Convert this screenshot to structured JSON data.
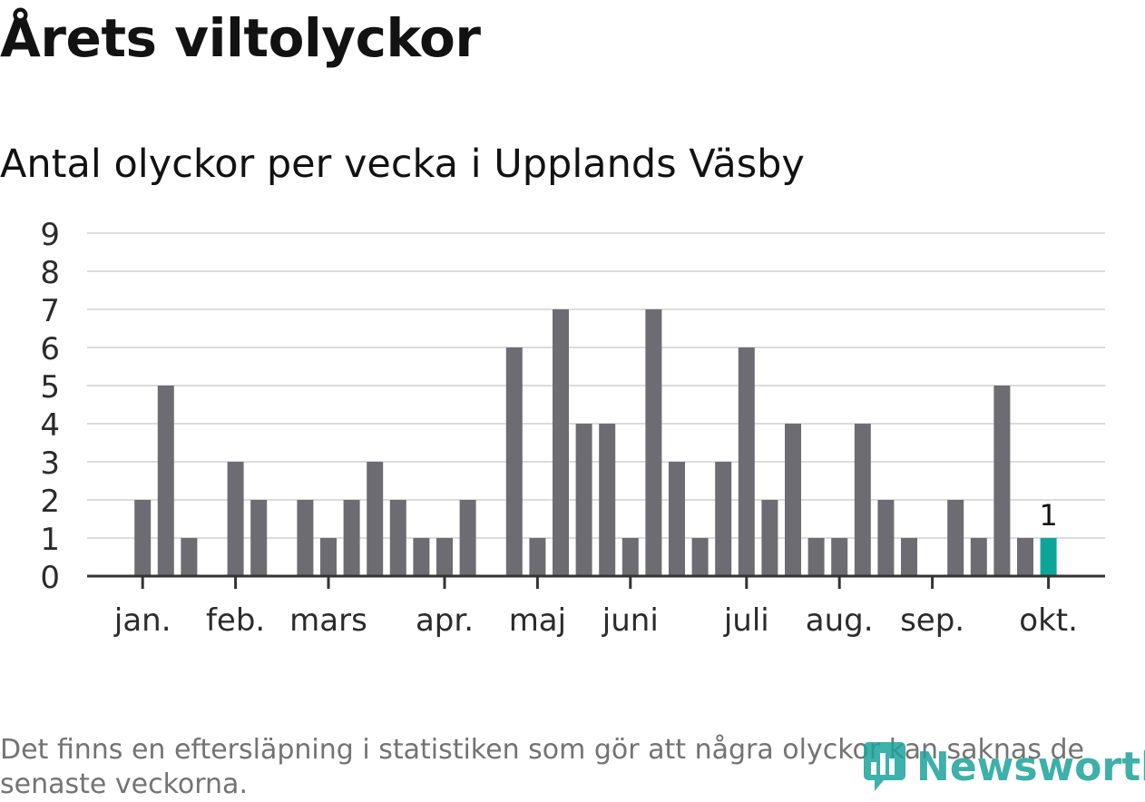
{
  "title": "Årets viltolyckor",
  "subtitle": "Antal olyckor per vecka i Upplands Väsby",
  "footnote": "Det finns en eftersläpning i statistiken som gör att några olyckor kan saknas de senaste veckorna.",
  "logo": {
    "text": "Newsworthy",
    "icon": "newsworthy-logo-icon"
  },
  "colors": {
    "bar": "#6d6c72",
    "highlight": "#0da59a",
    "grid": "#dcdcdc",
    "axis": "#333333"
  },
  "chart_data": {
    "type": "bar",
    "title": "Antal olyckor per vecka i Upplands Väsby",
    "xlabel": "",
    "ylabel": "",
    "ylim": [
      0,
      9
    ],
    "yticks": [
      0,
      1,
      2,
      3,
      4,
      5,
      6,
      7,
      8,
      9
    ],
    "grid": true,
    "values": [
      0,
      0,
      2,
      5,
      1,
      0,
      3,
      2,
      0,
      2,
      1,
      2,
      3,
      2,
      1,
      1,
      2,
      0,
      6,
      1,
      7,
      4,
      4,
      1,
      7,
      3,
      1,
      3,
      6,
      2,
      4,
      1,
      1,
      4,
      2,
      1,
      0,
      2,
      1,
      5,
      1,
      1
    ],
    "highlight_index": 41,
    "data_labels": [
      {
        "index": 41,
        "text": "1"
      }
    ],
    "month_labels": [
      {
        "label": "jan.",
        "week_index": 2
      },
      {
        "label": "feb.",
        "week_index": 6
      },
      {
        "label": "mars",
        "week_index": 10
      },
      {
        "label": "apr.",
        "week_index": 15
      },
      {
        "label": "maj",
        "week_index": 19
      },
      {
        "label": "juni",
        "week_index": 23
      },
      {
        "label": "juli",
        "week_index": 28
      },
      {
        "label": "aug.",
        "week_index": 32
      },
      {
        "label": "sep.",
        "week_index": 36
      },
      {
        "label": "okt.",
        "week_index": 41
      }
    ]
  }
}
